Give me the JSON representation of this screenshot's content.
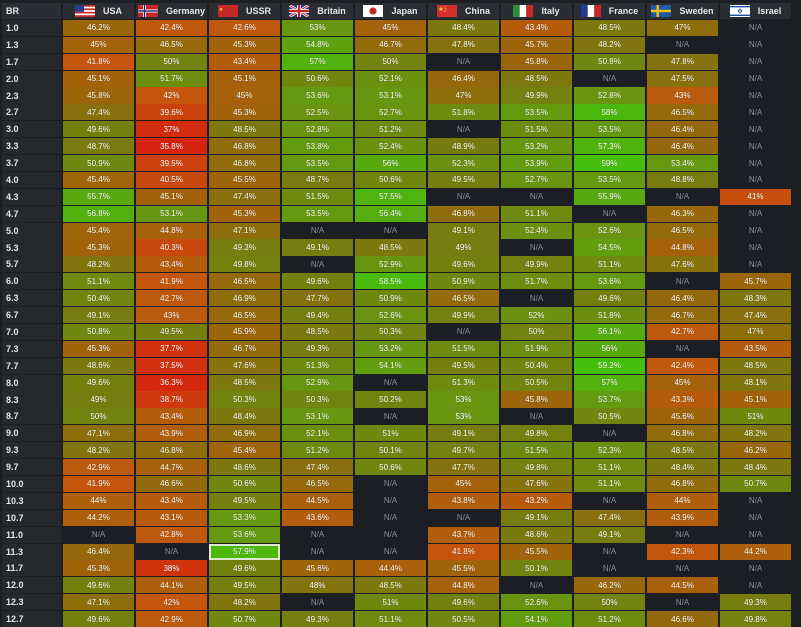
{
  "table": {
    "corner_label": "BR",
    "nations": [
      {
        "name": "USA",
        "flag": "usa-flag-icon"
      },
      {
        "name": "Germany",
        "flag": "germany-flag-icon"
      },
      {
        "name": "USSR",
        "flag": "ussr-flag-icon"
      },
      {
        "name": "Britain",
        "flag": "britain-flag-icon"
      },
      {
        "name": "Japan",
        "flag": "japan-flag-icon"
      },
      {
        "name": "China",
        "flag": "china-flag-icon"
      },
      {
        "name": "Italy",
        "flag": "italy-flag-icon"
      },
      {
        "name": "France",
        "flag": "france-flag-icon"
      },
      {
        "name": "Sweden",
        "flag": "sweden-flag-icon"
      },
      {
        "name": "Israel",
        "flag": "israel-flag-icon"
      }
    ],
    "na_label": "N/A",
    "highlighted_cell": {
      "br": "11.3",
      "nation": "USSR"
    },
    "rows": [
      {
        "br": "1.0",
        "values": [
          "46.2%",
          "42.4%",
          "42.6%",
          "53%",
          "45%",
          "48.4%",
          "43.4%",
          "48.5%",
          "47%",
          "N/A"
        ]
      },
      {
        "br": "1.3",
        "values": [
          "45%",
          "46.5%",
          "45.3%",
          "54.8%",
          "46.7%",
          "47.8%",
          "45.7%",
          "48.2%",
          "N/A",
          "N/A"
        ]
      },
      {
        "br": "1.7",
        "values": [
          "41.8%",
          "50%",
          "43.4%",
          "57%",
          "50%",
          "N/A",
          "45.8%",
          "50.8%",
          "47.8%",
          "N/A"
        ]
      },
      {
        "br": "2.0",
        "values": [
          "45.1%",
          "51.7%",
          "45.1%",
          "50.6%",
          "52.1%",
          "46.4%",
          "48.5%",
          "N/A",
          "47.5%",
          "N/A"
        ]
      },
      {
        "br": "2.3",
        "values": [
          "45.8%",
          "42%",
          "45%",
          "53.6%",
          "53.1%",
          "47%",
          "49.9%",
          "52.8%",
          "43%",
          "N/A"
        ]
      },
      {
        "br": "2.7",
        "values": [
          "47.4%",
          "39.6%",
          "45.3%",
          "52.5%",
          "52.7%",
          "51.8%",
          "53.5%",
          "58%",
          "46.5%",
          "N/A"
        ]
      },
      {
        "br": "3.0",
        "values": [
          "49.6%",
          "37%",
          "48.5%",
          "52.8%",
          "51.2%",
          "N/A",
          "51.5%",
          "53.5%",
          "46.4%",
          "N/A"
        ]
      },
      {
        "br": "3.3",
        "values": [
          "48.7%",
          "35.8%",
          "46.8%",
          "53.8%",
          "52.4%",
          "48.9%",
          "53.2%",
          "57.3%",
          "46.4%",
          "N/A"
        ]
      },
      {
        "br": "3.7",
        "values": [
          "50.9%",
          "39.5%",
          "46.8%",
          "53.5%",
          "56%",
          "52.3%",
          "53.9%",
          "59%",
          "53.4%",
          "N/A"
        ]
      },
      {
        "br": "4.0",
        "values": [
          "45.4%",
          "40.5%",
          "45.5%",
          "48.7%",
          "50.6%",
          "49.5%",
          "52.7%",
          "53.5%",
          "48.8%",
          "N/A"
        ]
      },
      {
        "br": "4.3",
        "values": [
          "55.7%",
          "45.1%",
          "47.4%",
          "51.5%",
          "57.5%",
          "N/A",
          "N/A",
          "55.9%",
          "N/A",
          "41%"
        ]
      },
      {
        "br": "4.7",
        "values": [
          "56.8%",
          "53.1%",
          "45.3%",
          "53.5%",
          "56.4%",
          "46.8%",
          "51.1%",
          "N/A",
          "46.3%",
          "N/A"
        ]
      },
      {
        "br": "5.0",
        "values": [
          "45.4%",
          "44.8%",
          "47.1%",
          "N/A",
          "N/A",
          "49.1%",
          "52.4%",
          "52.6%",
          "46.5%",
          "N/A"
        ]
      },
      {
        "br": "5.3",
        "values": [
          "45.3%",
          "40.3%",
          "49.3%",
          "49.1%",
          "48.5%",
          "49%",
          "N/A",
          "54.5%",
          "44.8%",
          "N/A"
        ]
      },
      {
        "br": "5.7",
        "values": [
          "48.2%",
          "43.4%",
          "49.8%",
          "N/A",
          "52.9%",
          "49.6%",
          "49.9%",
          "51.1%",
          "47.6%",
          "N/A"
        ]
      },
      {
        "br": "6.0",
        "values": [
          "51.1%",
          "41.9%",
          "46.5%",
          "49.6%",
          "58.5%",
          "50.9%",
          "51.7%",
          "53.6%",
          "N/A",
          "45.7%"
        ]
      },
      {
        "br": "6.3",
        "values": [
          "50.4%",
          "42.7%",
          "46.9%",
          "47.7%",
          "50.9%",
          "46.5%",
          "N/A",
          "49.6%",
          "46.4%",
          "48.3%"
        ]
      },
      {
        "br": "6.7",
        "values": [
          "49.1%",
          "43%",
          "46.5%",
          "49.4%",
          "52.6%",
          "49.9%",
          "52%",
          "51.8%",
          "46.7%",
          "47.4%"
        ]
      },
      {
        "br": "7.0",
        "values": [
          "50.8%",
          "49.5%",
          "45.9%",
          "48.5%",
          "50.3%",
          "N/A",
          "50%",
          "56.1%",
          "42.7%",
          "47%"
        ]
      },
      {
        "br": "7.3",
        "values": [
          "45.3%",
          "37.7%",
          "46.7%",
          "49.3%",
          "53.2%",
          "51.5%",
          "51.9%",
          "56%",
          "N/A",
          "43.5%"
        ]
      },
      {
        "br": "7.7",
        "values": [
          "48.6%",
          "37.5%",
          "47.6%",
          "51.3%",
          "54.1%",
          "49.5%",
          "50.4%",
          "59.2%",
          "42.4%",
          "48.5%"
        ]
      },
      {
        "br": "8.0",
        "values": [
          "49.6%",
          "36.3%",
          "48.5%",
          "52.9%",
          "N/A",
          "51.3%",
          "50.5%",
          "57%",
          "45%",
          "48.1%"
        ]
      },
      {
        "br": "8.3",
        "values": [
          "49%",
          "38.7%",
          "50.3%",
          "50.3%",
          "50.2%",
          "53%",
          "45.8%",
          "53.7%",
          "43.3%",
          "45.1%"
        ]
      },
      {
        "br": "8.7",
        "values": [
          "50%",
          "43.4%",
          "48.4%",
          "53.1%",
          "N/A",
          "53%",
          "N/A",
          "50.5%",
          "45.6%",
          "51%"
        ]
      },
      {
        "br": "9.0",
        "values": [
          "47.1%",
          "43.9%",
          "46.9%",
          "52.1%",
          "51%",
          "49.1%",
          "49.8%",
          "N/A",
          "46.8%",
          "48.2%"
        ]
      },
      {
        "br": "9.3",
        "values": [
          "48.2%",
          "46.8%",
          "45.4%",
          "51.2%",
          "50.1%",
          "49.7%",
          "51.5%",
          "52.3%",
          "48.5%",
          "46.2%"
        ]
      },
      {
        "br": "9.7",
        "values": [
          "42.9%",
          "44.7%",
          "48.6%",
          "47.4%",
          "50.6%",
          "47.7%",
          "49.8%",
          "51.1%",
          "48.4%",
          "48.4%"
        ]
      },
      {
        "br": "10.0",
        "values": [
          "41.9%",
          "46.6%",
          "50.6%",
          "46.5%",
          "N/A",
          "45%",
          "47.6%",
          "51.1%",
          "46.8%",
          "50.7%"
        ]
      },
      {
        "br": "10.3",
        "values": [
          "44%",
          "43.4%",
          "49.5%",
          "44.5%",
          "N/A",
          "43.8%",
          "43.2%",
          "N/A",
          "44%",
          "N/A"
        ]
      },
      {
        "br": "10.7",
        "values": [
          "44.2%",
          "43.1%",
          "53.3%",
          "43.6%",
          "N/A",
          "N/A",
          "49.1%",
          "47.4%",
          "43.9%",
          "N/A"
        ]
      },
      {
        "br": "11.0",
        "values": [
          "N/A",
          "42.8%",
          "53.6%",
          "N/A",
          "N/A",
          "43.7%",
          "48.6%",
          "49.1%",
          "N/A",
          "N/A"
        ]
      },
      {
        "br": "11.3",
        "values": [
          "46.4%",
          "N/A",
          "57.9%",
          "N/A",
          "N/A",
          "41.8%",
          "45.5%",
          "N/A",
          "42.3%",
          "44.2%"
        ]
      },
      {
        "br": "11.7",
        "values": [
          "45.3%",
          "38%",
          "49.6%",
          "45.6%",
          "44.4%",
          "45.5%",
          "50.1%",
          "N/A",
          "N/A",
          "N/A"
        ]
      },
      {
        "br": "12.0",
        "values": [
          "49.6%",
          "44.1%",
          "49.5%",
          "48%",
          "48.5%",
          "44.8%",
          "N/A",
          "46.2%",
          "44.5%",
          "N/A"
        ]
      },
      {
        "br": "12.3",
        "values": [
          "47.1%",
          "42%",
          "48.2%",
          "N/A",
          "51%",
          "49.6%",
          "52.6%",
          "50%",
          "N/A",
          "49.3%"
        ]
      },
      {
        "br": "12.7",
        "values": [
          "49.6%",
          "42.9%",
          "50.7%",
          "49.3%",
          "51.1%",
          "50.5%",
          "54.1%",
          "51.2%",
          "46.6%",
          "49.8%"
        ]
      }
    ]
  }
}
